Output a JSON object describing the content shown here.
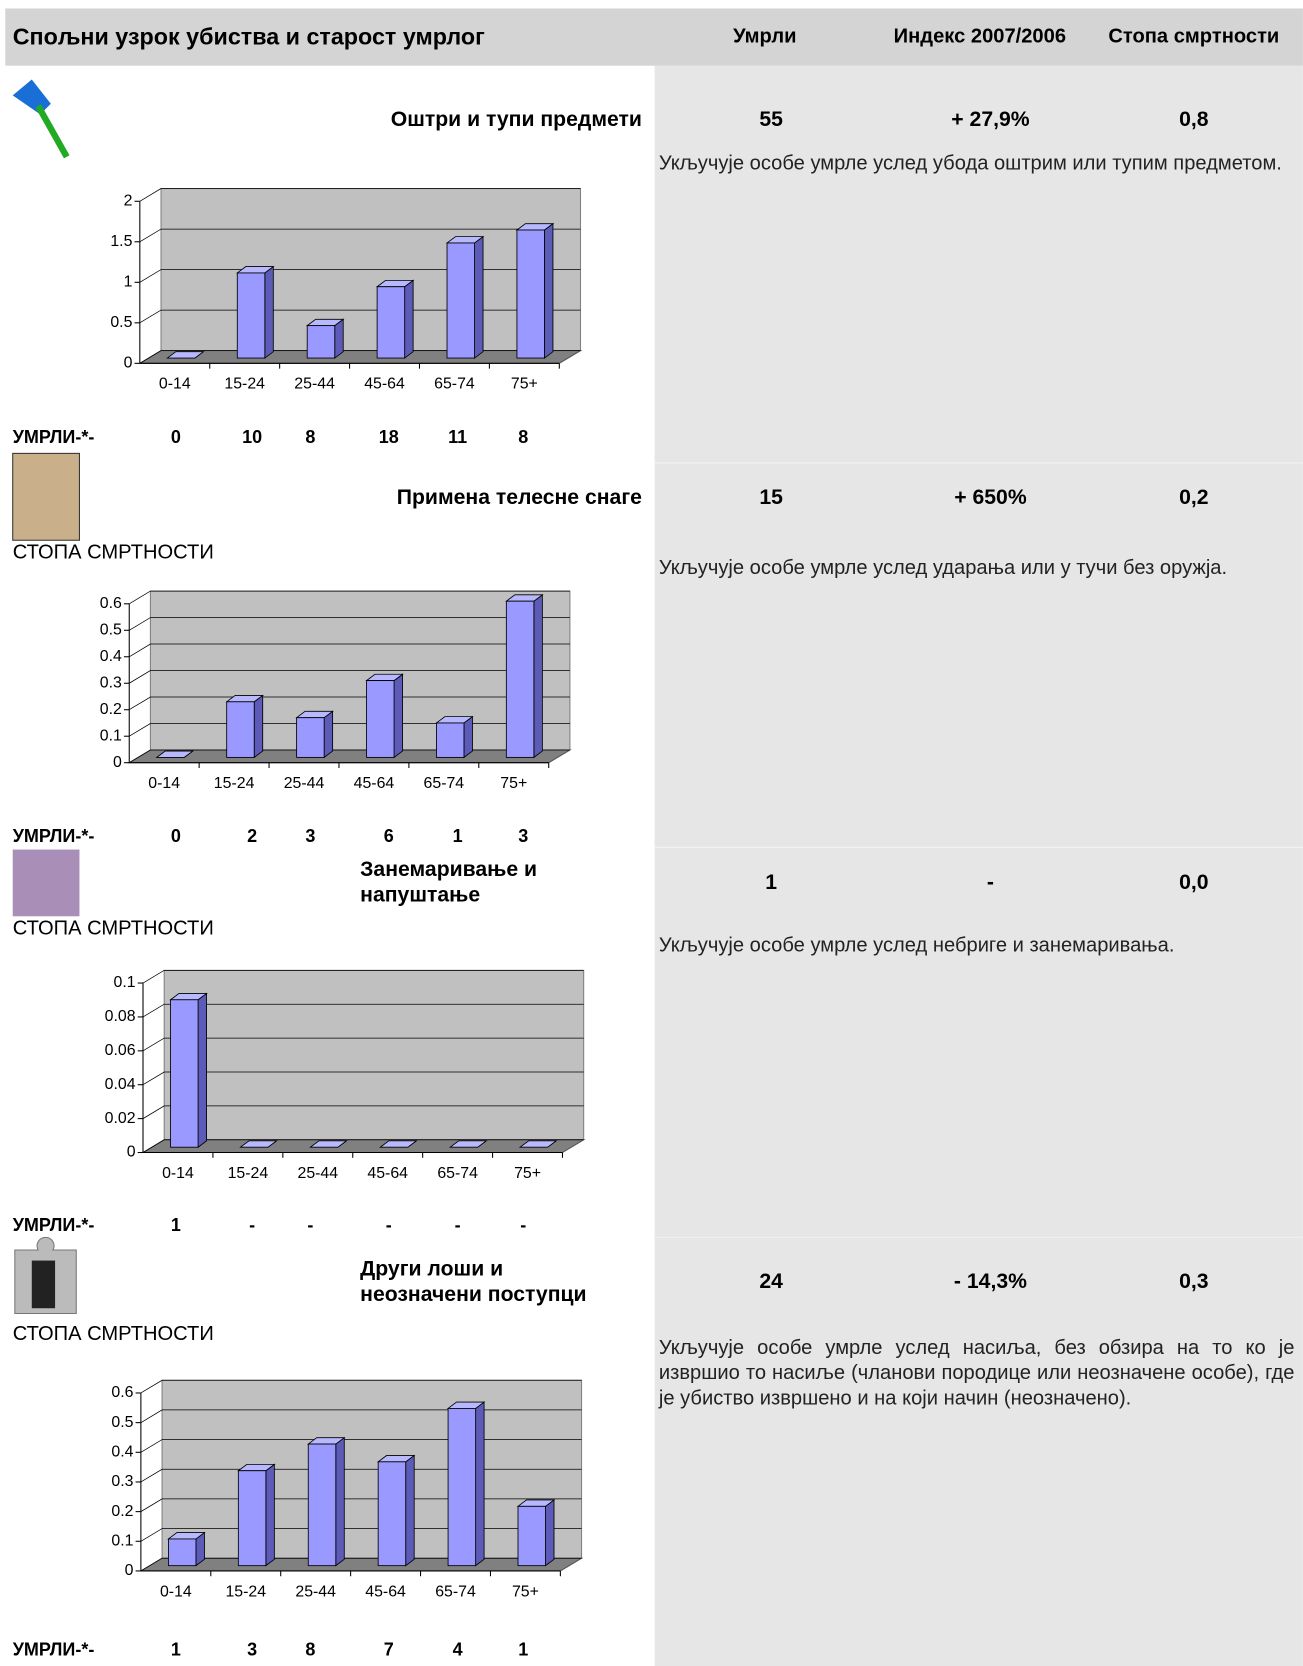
{
  "header": {
    "title": "Спољни узрок убиства и старост умрлог",
    "columns": [
      "Умрли",
      "Индекс 2007/2006",
      "Стопа смртности"
    ]
  },
  "sections": [
    {
      "title": "Оштри и тупи предмети",
      "deaths": "55",
      "index": "+ 27,9%",
      "rate": "0,8",
      "description": "Укључује особе умрле услед убода оштрим или тупим предметом.",
      "deaths_label": "УМРЛИ-*-",
      "deaths_by_age": [
        "0",
        "10",
        "8",
        "18",
        "11",
        "8"
      ]
    },
    {
      "title": "Примена телесне снаге",
      "deaths": "15",
      "index": "+ 650%",
      "rate": "0,2",
      "rate_label": "СТОПА СМРТНОСТИ",
      "description": "Укључује особе умрле услед ударања или у тучи без оружја.",
      "deaths_label": "УМРЛИ-*-",
      "deaths_by_age": [
        "0",
        "2",
        "3",
        "6",
        "1",
        "3"
      ]
    },
    {
      "title": "Занемаривање и напуштање",
      "deaths": "1",
      "index": "-",
      "rate": "0,0",
      "rate_label": "СТОПА СМРТНОСТИ",
      "description": "Укључује особе умрле услед небриге и занемаривања.",
      "deaths_label": "УМРЛИ-*-",
      "deaths_by_age": [
        "1",
        "-",
        "-",
        "-",
        "-",
        "-"
      ]
    },
    {
      "title": "Други лоши и неозначени поступци",
      "deaths": "24",
      "index": "- 14,3%",
      "rate": "0,3",
      "rate_label": "СТОПА СМРТНОСТИ",
      "description": "Укључује особе умрле услед насиља, без обзира на то ко је извршио то насиље (чланови породице или неозначене особе), где је убиство извршено и на који начин (неозначено).",
      "deaths_label": "УМРЛИ-*-",
      "deaths_by_age": [
        "1",
        "3",
        "8",
        "7",
        "4",
        "1"
      ]
    }
  ],
  "chart_data": [
    {
      "type": "bar",
      "categories": [
        "0-14",
        "15-24",
        "25-44",
        "45-64",
        "65-74",
        "75+"
      ],
      "values": [
        0,
        1.05,
        0.4,
        0.88,
        1.42,
        1.58
      ],
      "color": "#9999ff",
      "ylim": [
        0,
        2
      ],
      "yticks": [
        0,
        0.5,
        1,
        1.5,
        2
      ],
      "grid": true
    },
    {
      "type": "bar",
      "categories": [
        "0-14",
        "15-24",
        "25-44",
        "45-64",
        "65-74",
        "75+"
      ],
      "values": [
        0,
        0.21,
        0.15,
        0.29,
        0.13,
        0.59
      ],
      "color": "#9999ff",
      "ylim": [
        0,
        0.6
      ],
      "yticks": [
        0,
        0.1,
        0.2,
        0.3,
        0.4,
        0.5,
        0.6
      ],
      "grid": true
    },
    {
      "type": "bar",
      "categories": [
        "0-14",
        "15-24",
        "25-44",
        "45-64",
        "65-74",
        "75+"
      ],
      "values": [
        0.087,
        0,
        0,
        0,
        0,
        0
      ],
      "color": "#9999ff",
      "ylim": [
        0,
        0.1
      ],
      "yticks": [
        0,
        0.02,
        0.04,
        0.06,
        0.08,
        0.1
      ],
      "grid": true
    },
    {
      "type": "bar",
      "categories": [
        "0-14",
        "15-24",
        "25-44",
        "45-64",
        "65-74",
        "75+"
      ],
      "values": [
        0.09,
        0.32,
        0.41,
        0.35,
        0.53,
        0.2
      ],
      "color": "#9999ff",
      "ylim": [
        0,
        0.6
      ],
      "yticks": [
        0,
        0.1,
        0.2,
        0.3,
        0.4,
        0.5,
        0.6
      ],
      "grid": true
    }
  ]
}
